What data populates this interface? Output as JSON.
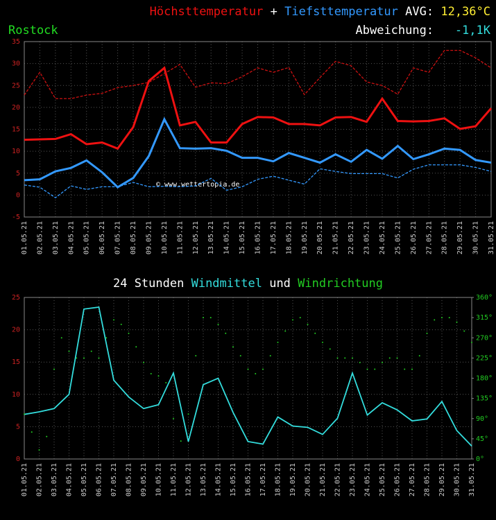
{
  "chart_data": [
    {
      "type": "line",
      "location": "Rostock",
      "title_joiner": "+",
      "avg_label": "AVG:",
      "avg_value": "12,36°C",
      "deviation_label": "Abweichung:",
      "deviation_value": "-1,1K",
      "watermark": "© www.wettertopia.de",
      "categories": [
        "01.05.21",
        "02.05.21",
        "03.05.21",
        "04.05.21",
        "05.05.21",
        "06.05.21",
        "07.05.21",
        "08.05.21",
        "09.05.21",
        "10.05.21",
        "11.05.21",
        "12.05.21",
        "13.05.21",
        "14.05.21",
        "15.05.21",
        "16.05.21",
        "17.05.21",
        "18.05.21",
        "19.05.21",
        "20.05.21",
        "21.05.21",
        "22.05.21",
        "23.05.21",
        "24.05.21",
        "25.05.21",
        "26.05.21",
        "27.05.21",
        "28.05.21",
        "29.05.21",
        "30.05.21",
        "31.05.21"
      ],
      "series": [
        {
          "name": "Höchsttemperatur",
          "color": "#ee1111",
          "linestyle": "solid",
          "values": [
            12.6,
            12.7,
            12.8,
            13.9,
            11.6,
            12.0,
            10.6,
            15.5,
            26,
            29,
            15.9,
            16.7,
            12,
            12,
            16.2,
            17.8,
            17.7,
            16.2,
            16.2,
            15.9,
            17.7,
            17.8,
            16.7,
            22,
            16.9,
            16.8,
            16.9,
            17.5,
            15.1,
            15.7,
            19.8
          ]
        },
        {
          "color": "#cc1111",
          "linestyle": "dashed",
          "values": [
            22.8,
            28,
            22,
            22,
            22.8,
            23.2,
            24.5,
            25,
            25.7,
            27.7,
            29.8,
            24.6,
            25.6,
            25.4,
            27,
            29,
            28,
            29.1,
            22.9,
            26.8,
            30.5,
            29.5,
            25.8,
            25,
            23,
            29,
            28,
            33,
            33,
            31.3,
            29
          ]
        },
        {
          "name": "Tiefsttemperatur",
          "color": "#3399ff",
          "linestyle": "solid",
          "values": [
            3.4,
            3.6,
            5.4,
            6.2,
            7.9,
            5.2,
            1.8,
            3.9,
            8.9,
            17.3,
            10.7,
            10.6,
            10.7,
            10.1,
            8.5,
            8.5,
            7.7,
            9.6,
            8.5,
            7.4,
            9.3,
            7.6,
            10.3,
            8.3,
            11.2,
            8.2,
            9.3,
            10.6,
            10.3,
            8,
            7.4
          ]
        },
        {
          "color": "#3399ff",
          "linestyle": "dashed",
          "values": [
            2.3,
            1.8,
            -0.6,
            2.1,
            1.3,
            1.9,
            1.9,
            2.9,
            1.9,
            2.0,
            1.9,
            2.1,
            3.8,
            1.1,
            1.9,
            3.6,
            4.3,
            3.4,
            2.5,
            6,
            5.4,
            4.9,
            4.9,
            4.9,
            3.9,
            5.9,
            6.9,
            6.9,
            6.9,
            6.3,
            5.4
          ]
        }
      ],
      "ylim": [
        -5,
        35
      ],
      "yticks": [
        -5,
        0,
        5,
        10,
        15,
        20,
        25,
        30,
        35
      ],
      "grid": true
    },
    {
      "type": "line",
      "title_prefix": "24 Stunden",
      "title_joiner": "und",
      "categories": [
        "01.05.21",
        "02.05.21",
        "03.05.21",
        "04.05.21",
        "05.05.21",
        "06.05.21",
        "07.05.21",
        "08.05.21",
        "09.05.21",
        "10.05.21",
        "11.05.21",
        "12.05.21",
        "13.05.21",
        "14.05.21",
        "15.05.21",
        "16.05.21",
        "17.05.21",
        "18.05.21",
        "19.05.21",
        "20.05.21",
        "21.05.21",
        "22.05.21",
        "23.05.21",
        "24.05.21",
        "25.05.21",
        "26.05.21",
        "27.05.21",
        "28.05.21",
        "29.05.21",
        "30.05.21",
        "31.05.21"
      ],
      "series": [
        {
          "name": "Windmittel",
          "color": "#33dddd",
          "marker": "line",
          "values": [
            6.9,
            7.3,
            7.8,
            10.0,
            23.2,
            23.5,
            12.2,
            9.6,
            7.8,
            8.4,
            13.3,
            2.7,
            11.5,
            12.5,
            7.2,
            2.7,
            2.3,
            6.5,
            5.1,
            4.9,
            3.8,
            6.3,
            13.3,
            6.8,
            8.7,
            7.6,
            5.9,
            6.2,
            8.9,
            4.4,
            2.0
          ]
        },
        {
          "name": "Windrichtung",
          "color": "#22cc22",
          "marker": "dots",
          "axis": "y2",
          "x": [
            0,
            0.5,
            1,
            1.5,
            2,
            2.5,
            3,
            3.5,
            4,
            4.5,
            5,
            5.5,
            6,
            6.5,
            7,
            7.5,
            8,
            8.5,
            9,
            9.5,
            10,
            10.5,
            11,
            11.5,
            12,
            12.5,
            13,
            13.5,
            14,
            14.5,
            15,
            15.5,
            16,
            16.5,
            17,
            17.5,
            18,
            18.5,
            19,
            19.5,
            20,
            20.5,
            21,
            21.5,
            22,
            22.5,
            23,
            23.5,
            24,
            24.5,
            25,
            25.5,
            26,
            26.5,
            27,
            27.5,
            28,
            28.5,
            29,
            29.5,
            30
          ],
          "values": [
            100,
            60,
            20,
            50,
            200,
            270,
            240,
            225,
            225,
            240,
            225,
            270,
            310,
            300,
            280,
            250,
            215,
            190,
            185,
            170,
            90,
            40,
            100,
            230,
            315,
            315,
            300,
            280,
            250,
            230,
            200,
            190,
            200,
            230,
            260,
            285,
            310,
            315,
            300,
            280,
            260,
            245,
            225,
            225,
            225,
            215,
            200,
            200,
            215,
            225,
            225,
            200,
            200,
            230,
            280,
            310,
            315,
            315,
            305,
            285,
            260
          ]
        }
      ],
      "ylim": [
        0,
        25
      ],
      "yticks": [
        0,
        5,
        10,
        15,
        20,
        25
      ],
      "y2lim": [
        0,
        360
      ],
      "y2ticks": [
        {
          "value": 0,
          "label": "0°"
        },
        {
          "value": 45,
          "label": "45°"
        },
        {
          "value": 90,
          "label": "90°"
        },
        {
          "value": 135,
          "label": "135°"
        },
        {
          "value": 180,
          "label": "180°"
        },
        {
          "value": 225,
          "label": "225°"
        },
        {
          "value": 270,
          "label": "270°"
        },
        {
          "value": 315,
          "label": "315°"
        },
        {
          "value": 360,
          "label": "360°"
        }
      ],
      "grid": true
    }
  ]
}
